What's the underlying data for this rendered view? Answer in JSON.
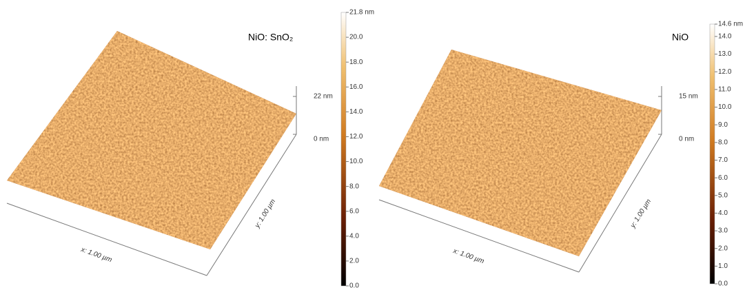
{
  "panels": [
    {
      "label": "NiO: SnO₂",
      "z_scale": {
        "top": "22 nm",
        "bottom": "0 nm"
      },
      "x_axis": "x: 1.00 µm",
      "y_axis": "y: 1.00 µm",
      "colorbar": [
        "21.8 nm",
        "20.0",
        "18.0",
        "16.0",
        "14.0",
        "12.0",
        "10.0",
        "8.0",
        "6.0",
        "4.0",
        "2.0",
        "0.0"
      ]
    },
    {
      "label": "NiO",
      "z_scale": {
        "top": "15 nm",
        "bottom": "0 nm"
      },
      "x_axis": "x: 1.00 µm",
      "y_axis": "y: 1.00 µm",
      "colorbar": [
        "14.6 nm",
        "14.0",
        "13.0",
        "12.0",
        "11.0",
        "10.0",
        "9.0",
        "8.0",
        "7.0",
        "6.0",
        "5.0",
        "4.0",
        "3.0",
        "2.0",
        "1.0",
        "0.0"
      ]
    }
  ]
}
